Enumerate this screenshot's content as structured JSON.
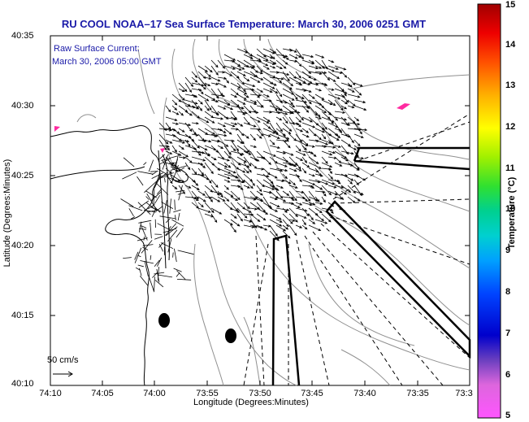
{
  "title": "RU COOL  NOAA–17  Sea Surface Temperature:  March 30, 2006 0251 GMT",
  "annotation": {
    "line1": "Raw Surface Current:",
    "line2": "March 30, 2006 05:00 GMT"
  },
  "axes": {
    "xlabel": "Longitude (Degrees:Minutes)",
    "ylabel": "Latitude (Degrees:Minutes)",
    "xticks": [
      "74:10",
      "74:05",
      "74:00",
      "73:55",
      "73:50",
      "73:45",
      "73:40",
      "73:35",
      "73:3"
    ],
    "yticks": [
      "40:35",
      "40:30",
      "40:25",
      "40:20",
      "40:15",
      "40:10"
    ]
  },
  "colorbar": {
    "title": "Temperature (°C)",
    "ticks": [
      "15",
      "14",
      "13",
      "12",
      "11",
      "10",
      "9",
      "8",
      "7",
      "6",
      "5"
    ],
    "min": 5,
    "max": 15
  },
  "scale_arrow": {
    "label": "50 cm/s"
  },
  "colors": {
    "title_text": "#1a1aa8",
    "vectors": "#000000",
    "bathymetry": "#909090",
    "coast": "#000000",
    "sst_pink": "#ff2aa0"
  }
}
